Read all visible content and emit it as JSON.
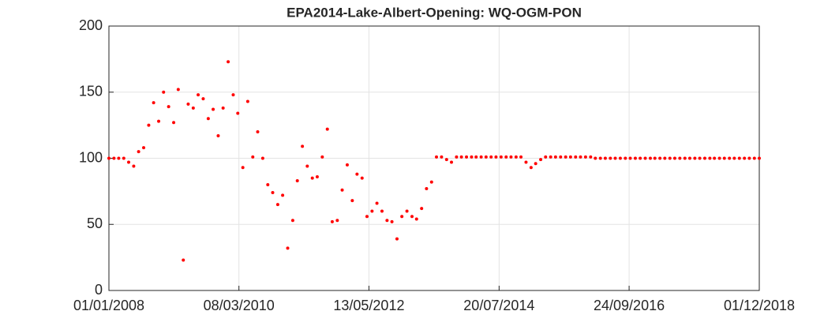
{
  "chart_data": {
    "type": "scatter",
    "title": "EPA2014-Lake-Albert-Opening: WQ-OGM-PON",
    "color": "#ff0000",
    "grid": true,
    "x": [
      "2008-01-01",
      "2008-02-01",
      "2008-03-01",
      "2008-04-01",
      "2008-05-01",
      "2008-06-01",
      "2008-07-01",
      "2008-08-01",
      "2008-09-01",
      "2008-10-01",
      "2008-11-01",
      "2008-12-01",
      "2009-01-01",
      "2009-02-01",
      "2009-03-01",
      "2009-04-01",
      "2009-05-01",
      "2009-06-01",
      "2009-07-01",
      "2009-08-01",
      "2009-09-01",
      "2009-10-01",
      "2009-11-01",
      "2009-12-01",
      "2010-01-01",
      "2010-02-01",
      "2010-03-01",
      "2010-04-01",
      "2010-05-01",
      "2010-06-01",
      "2010-07-01",
      "2010-08-01",
      "2010-09-01",
      "2010-10-01",
      "2010-11-01",
      "2010-12-01",
      "2011-01-01",
      "2011-02-01",
      "2011-03-01",
      "2011-04-01",
      "2011-05-01",
      "2011-06-01",
      "2011-07-01",
      "2011-08-01",
      "2011-09-01",
      "2011-10-01",
      "2011-11-01",
      "2011-12-01",
      "2012-01-01",
      "2012-02-01",
      "2012-03-01",
      "2012-04-01",
      "2012-05-01",
      "2012-06-01",
      "2012-07-01",
      "2012-08-01",
      "2012-09-01",
      "2012-10-01",
      "2012-11-01",
      "2012-12-01",
      "2013-01-01",
      "2013-02-01",
      "2013-03-01",
      "2013-04-01",
      "2013-05-01",
      "2013-06-01",
      "2013-07-01",
      "2013-08-01",
      "2013-09-01",
      "2013-10-01",
      "2013-11-01",
      "2013-12-01",
      "2014-01-01",
      "2014-02-01",
      "2014-03-01",
      "2014-04-01",
      "2014-05-01",
      "2014-06-01",
      "2014-07-01",
      "2014-08-01",
      "2014-09-01",
      "2014-10-01",
      "2014-11-01",
      "2014-12-01",
      "2015-01-01",
      "2015-02-01",
      "2015-03-01",
      "2015-04-01",
      "2015-05-01",
      "2015-06-01",
      "2015-07-01",
      "2015-08-01",
      "2015-09-01",
      "2015-10-01",
      "2015-11-01",
      "2015-12-01",
      "2016-01-01",
      "2016-02-01",
      "2016-03-01",
      "2016-04-01",
      "2016-05-01",
      "2016-06-01",
      "2016-07-01",
      "2016-08-01",
      "2016-09-01",
      "2016-10-01",
      "2016-11-01",
      "2016-12-01",
      "2017-01-01",
      "2017-02-01",
      "2017-03-01",
      "2017-04-01",
      "2017-05-01",
      "2017-06-01",
      "2017-07-01",
      "2017-08-01",
      "2017-09-01",
      "2017-10-01",
      "2017-11-01",
      "2017-12-01",
      "2018-01-01",
      "2018-02-01",
      "2018-03-01",
      "2018-04-01",
      "2018-05-01",
      "2018-06-01",
      "2018-07-01",
      "2018-08-01",
      "2018-09-01",
      "2018-10-01",
      "2018-11-01",
      "2018-12-01"
    ],
    "values": [
      100,
      100,
      100,
      100,
      97,
      94,
      105,
      108,
      125,
      142,
      128,
      150,
      139,
      127,
      152,
      23,
      141,
      138,
      148,
      145,
      130,
      137,
      117,
      138,
      173,
      148,
      134,
      93,
      143,
      101,
      120,
      100,
      80,
      74,
      65,
      72,
      32,
      53,
      83,
      109,
      94,
      85,
      86,
      101,
      122,
      52,
      53,
      76,
      95,
      68,
      88,
      85,
      56,
      60,
      66,
      60,
      53,
      52,
      39,
      56,
      60,
      56,
      54,
      62,
      77,
      82,
      101,
      101,
      99,
      97,
      101,
      101,
      101,
      101,
      101,
      101,
      101,
      101,
      101,
      101,
      101,
      101,
      101,
      101,
      97,
      93,
      96,
      99,
      101,
      101,
      101,
      101,
      101,
      101,
      101,
      101,
      101,
      101,
      100,
      100,
      100,
      100,
      100,
      100,
      100,
      100,
      100,
      100,
      100,
      100,
      100,
      100,
      100,
      100,
      100,
      100,
      100,
      100,
      100,
      100,
      100,
      100,
      100,
      100,
      100,
      100,
      100,
      100,
      100,
      100,
      100,
      100
    ],
    "xlim": [
      "2008-01-01",
      "2018-12-01"
    ],
    "xticks": [
      {
        "value": "2008-01-01",
        "label": "01/01/2008"
      },
      {
        "value": "2010-03-08",
        "label": "08/03/2010"
      },
      {
        "value": "2012-05-13",
        "label": "13/05/2012"
      },
      {
        "value": "2014-07-20",
        "label": "20/07/2014"
      },
      {
        "value": "2016-09-24",
        "label": "24/09/2016"
      },
      {
        "value": "2018-12-01",
        "label": "01/12/2018"
      }
    ],
    "ylim": [
      0,
      200
    ],
    "yticks": [
      0,
      50,
      100,
      150,
      200
    ]
  }
}
